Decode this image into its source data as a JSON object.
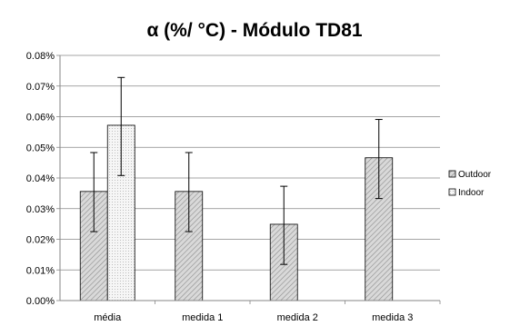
{
  "chart_data": {
    "type": "bar",
    "title": "α (%/ °C) - Módulo TD81",
    "categories": [
      "média",
      "medida 1",
      "medida 2",
      "medida 3"
    ],
    "y_ticks": [
      "0.00%",
      "0.01%",
      "0.02%",
      "0.03%",
      "0.04%",
      "0.05%",
      "0.06%",
      "0.07%",
      "0.08%"
    ],
    "ylim": [
      0,
      0.08
    ],
    "grid": true,
    "legend_position": "right",
    "series": [
      {
        "name": "Outdoor",
        "pattern": "diagonal-hatch",
        "fill": "#d9d9d9",
        "values": [
          0.0356,
          0.0356,
          0.0249,
          0.0466
        ],
        "err_low": [
          0.0225,
          0.0225,
          0.0118,
          0.0333
        ],
        "err_high": [
          0.0483,
          0.0483,
          0.0373,
          0.0591
        ]
      },
      {
        "name": "Indoor",
        "pattern": "dotted",
        "fill": "#f4f4f4",
        "values": [
          0.0572,
          null,
          null,
          null
        ],
        "err_low": [
          0.0408,
          null,
          null,
          null
        ],
        "err_high": [
          0.0728,
          null,
          null,
          null
        ]
      }
    ]
  }
}
